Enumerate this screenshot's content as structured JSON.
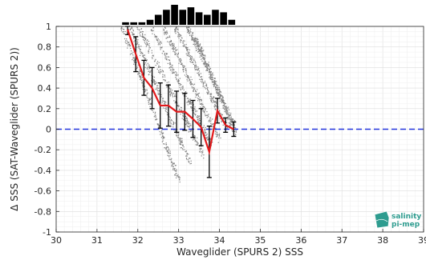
{
  "chart_data": {
    "type": "scatter",
    "title": "",
    "xlabel": "Waveglider (SPURS 2) SSS",
    "ylabel": "Δ SSS (SAT-Waveglider (SPURS 2))",
    "xlim": [
      30,
      39
    ],
    "ylim": [
      -1,
      1
    ],
    "xticks": [
      30,
      31,
      32,
      33,
      34,
      35,
      36,
      37,
      38,
      39
    ],
    "yticks": [
      -1,
      -0.8,
      -0.6,
      -0.4,
      -0.2,
      0,
      0.2,
      0.4,
      0.6,
      0.8,
      1
    ],
    "grid": true,
    "reference_line": {
      "y": 0,
      "color": "#2233dd",
      "style": "dashed"
    },
    "scatter_color": "#808080",
    "scatter_bands": [
      {
        "x_start": 31.6,
        "x_end": 33.0,
        "y_start": 1.0,
        "y_end": -0.5
      },
      {
        "x_start": 31.8,
        "x_end": 33.3,
        "y_start": 1.0,
        "y_end": -0.35
      },
      {
        "x_start": 32.0,
        "x_end": 33.6,
        "y_start": 1.0,
        "y_end": -0.25
      },
      {
        "x_start": 32.3,
        "x_end": 33.8,
        "y_start": 1.0,
        "y_end": -0.15
      },
      {
        "x_start": 32.6,
        "x_end": 34.0,
        "y_start": 1.0,
        "y_end": -0.1
      },
      {
        "x_start": 32.9,
        "x_end": 34.2,
        "y_start": 1.0,
        "y_end": 0.0
      },
      {
        "x_start": 33.2,
        "x_end": 34.35,
        "y_start": 1.0,
        "y_end": 0.05
      },
      {
        "x_start": 33.4,
        "x_end": 34.4,
        "y_start": 0.9,
        "y_end": -0.05
      }
    ],
    "mean_series": {
      "color": "#e31a1c",
      "x": [
        31.75,
        31.95,
        32.15,
        32.35,
        32.55,
        32.75,
        32.95,
        33.15,
        33.35,
        33.55,
        33.75,
        33.95,
        34.15,
        34.35
      ],
      "y": [
        0.97,
        0.73,
        0.5,
        0.4,
        0.23,
        0.23,
        0.17,
        0.17,
        0.1,
        0.02,
        -0.22,
        0.18,
        0.04,
        0.0
      ],
      "std": [
        0.05,
        0.17,
        0.17,
        0.2,
        0.22,
        0.2,
        0.2,
        0.18,
        0.18,
        0.18,
        0.25,
        0.12,
        0.07,
        0.07
      ]
    },
    "histogram": {
      "bin_edges": [
        31.6,
        31.8,
        32.0,
        32.2,
        32.4,
        32.6,
        32.8,
        33.0,
        33.2,
        33.4,
        33.6,
        33.8,
        34.0,
        34.2,
        34.4
      ],
      "counts": [
        1,
        1,
        1,
        2,
        4,
        6,
        8,
        6,
        7,
        5,
        4,
        6,
        5,
        2
      ]
    }
  },
  "logo": {
    "line1": "salinity",
    "line2": "pi-mep",
    "color": "#2e9c8f"
  }
}
